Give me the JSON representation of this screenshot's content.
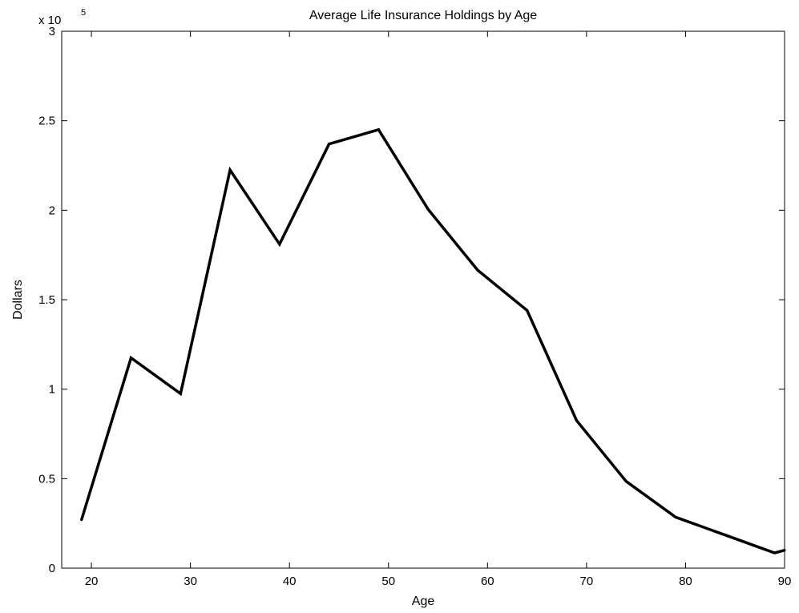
{
  "chart_data": {
    "type": "line",
    "title": "Average Life Insurance Holdings by Age",
    "xlabel": "Age",
    "ylabel": "Dollars",
    "y_exponent_prefix": "x 10",
    "y_exponent_power": "5",
    "xlim": [
      17,
      90
    ],
    "ylim": [
      0,
      3
    ],
    "xticks": [
      "20",
      "30",
      "40",
      "50",
      "60",
      "70",
      "80",
      "90"
    ],
    "yticks": [
      "0",
      "0.5",
      "1",
      "1.5",
      "2",
      "2.5",
      "3"
    ],
    "x": [
      19,
      24,
      29,
      34,
      39,
      44,
      49,
      54,
      59,
      64,
      69,
      74,
      79,
      84,
      89,
      90
    ],
    "y": [
      0.27,
      1.175,
      0.975,
      2.225,
      1.81,
      2.37,
      2.45,
      2.005,
      1.665,
      1.44,
      0.825,
      0.485,
      0.285,
      0.185,
      0.085,
      0.1
    ],
    "grid": false,
    "line_color": "#000000"
  }
}
